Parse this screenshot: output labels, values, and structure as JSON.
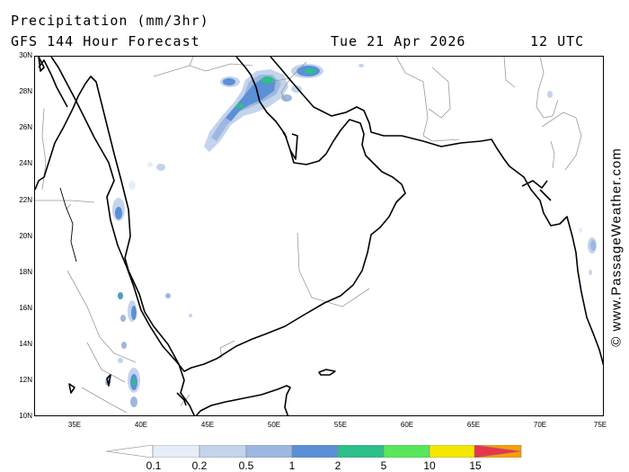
{
  "header": {
    "title": "Precipitation (mm/3hr)",
    "subtitle": "GFS 144 Hour Forecast",
    "date": "Tue 21 Apr 2026",
    "time": "12 UTC"
  },
  "credit": "© www.PassageWeather.com",
  "map": {
    "region": "Red Sea, Arabian Peninsula and Arabian Sea",
    "lon_range": [
      32,
      75
    ],
    "lat_range": [
      10,
      30
    ],
    "lat_labels": [
      "30N",
      "28N",
      "26N",
      "24N",
      "22N",
      "20N",
      "18N",
      "16N",
      "14N",
      "12N",
      "10N"
    ],
    "lon_labels": [
      "35E",
      "40E",
      "45E",
      "50E",
      "55E",
      "60E",
      "65E",
      "70E",
      "75E"
    ],
    "coast_color": "#000000",
    "border_color": "#9a9a9a",
    "precip_areas": [
      {
        "lon": 44.8,
        "lat": 28.6,
        "level": "0.5"
      },
      {
        "lon": 47.4,
        "lat": 28.4,
        "level": "1"
      },
      {
        "lon": 48.5,
        "lat": 28.0,
        "level": "1"
      },
      {
        "lon": 49.5,
        "lat": 28.6,
        "level": "2"
      },
      {
        "lon": 53.0,
        "lat": 29.2,
        "level": "2"
      },
      {
        "lon": 46.5,
        "lat": 26.8,
        "level": "2"
      },
      {
        "lon": 45.4,
        "lat": 25.6,
        "level": "0.5"
      },
      {
        "lon": 38.4,
        "lat": 21.0,
        "level": "0.5"
      },
      {
        "lon": 38.8,
        "lat": 16.6,
        "level": "1"
      },
      {
        "lon": 39.5,
        "lat": 14.0,
        "level": "0.5"
      },
      {
        "lon": 39.6,
        "lat": 12.0,
        "level": "2"
      },
      {
        "lon": 39.3,
        "lat": 11.0,
        "level": "0.5"
      },
      {
        "lon": 74.0,
        "lat": 19.0,
        "level": "0.5"
      }
    ]
  },
  "colorbar": {
    "ticks": [
      "0.1",
      "0.2",
      "0.5",
      "1",
      "2",
      "5",
      "10",
      "15"
    ],
    "colors": [
      "#e6eef8",
      "#c3d4ec",
      "#9db8e0",
      "#5b8fd6",
      "#2bbf8a",
      "#56e85a",
      "#f4e800",
      "#ff9c00",
      "#e6364a"
    ]
  }
}
